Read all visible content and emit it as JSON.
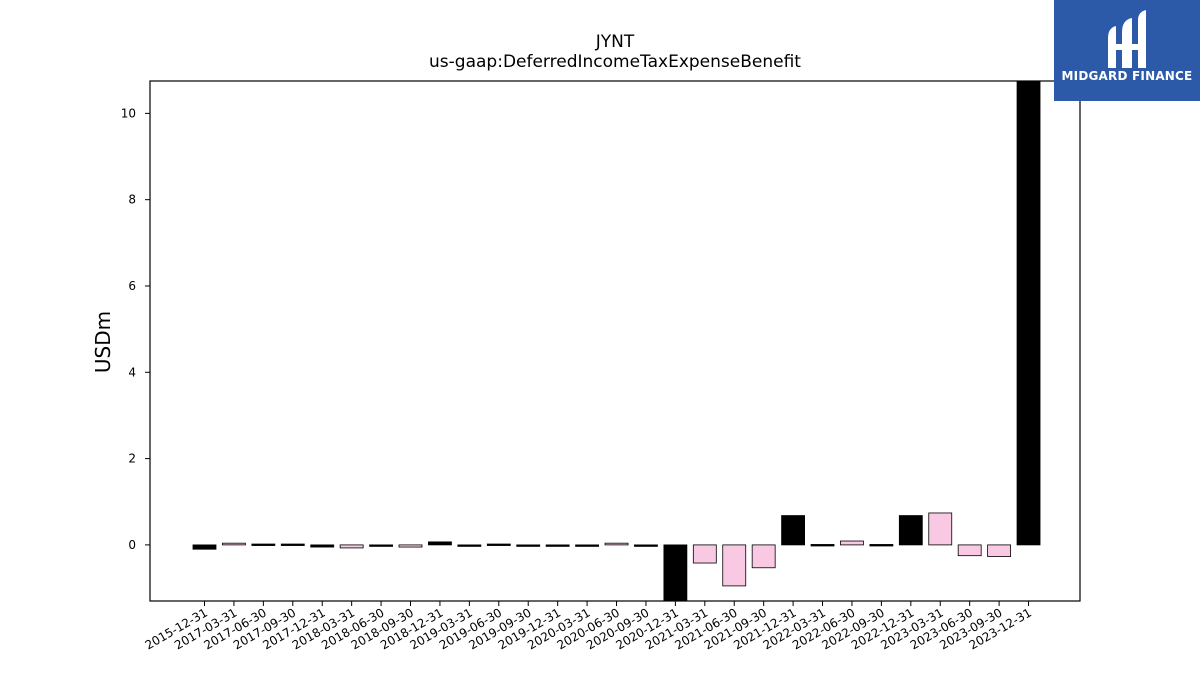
{
  "chart_data": {
    "type": "bar",
    "title": "JYNT",
    "subtitle": "us-gaap:DeferredIncomeTaxExpenseBenefit",
    "xlabel": "",
    "ylabel": "USDm",
    "ylim": [
      -1.3,
      10.75
    ],
    "yticks": [
      0,
      2,
      4,
      6,
      8,
      10
    ],
    "grid": false,
    "categories": [
      "2015-12-31",
      "2017-03-31",
      "2017-06-30",
      "2017-09-30",
      "2017-12-31",
      "2018-03-31",
      "2018-06-30",
      "2018-09-30",
      "2018-12-31",
      "2019-03-31",
      "2019-06-30",
      "2019-09-30",
      "2019-12-31",
      "2020-03-31",
      "2020-06-30",
      "2020-09-30",
      "2020-12-31",
      "2021-03-31",
      "2021-06-30",
      "2021-09-30",
      "2021-12-31",
      "2022-03-31",
      "2022-06-30",
      "2022-09-30",
      "2022-12-31",
      "2023-03-31",
      "2023-06-30",
      "2023-09-30",
      "2023-12-31"
    ],
    "values": [
      -0.1,
      0.04,
      0.02,
      0.02,
      -0.05,
      -0.07,
      -0.01,
      -0.05,
      0.07,
      -0.03,
      0.02,
      -0.01,
      -0.01,
      -0.03,
      0.04,
      -0.01,
      -1.3,
      -0.42,
      -0.95,
      -0.53,
      0.68,
      0.01,
      0.09,
      0.01,
      0.68,
      0.74,
      -0.25,
      -0.27,
      10.75
    ],
    "colors": {
      "positive_annual": "#000000",
      "other": "#f9c9e3",
      "edge": "#000000"
    },
    "bar_fill": [
      "dark",
      "light",
      "dark",
      "dark",
      "dark",
      "light",
      "dark",
      "light",
      "dark",
      "dark",
      "dark",
      "dark",
      "dark",
      "dark",
      "light",
      "dark",
      "dark",
      "light",
      "light",
      "light",
      "dark",
      "dark",
      "light",
      "dark",
      "dark",
      "light",
      "light",
      "light",
      "dark"
    ]
  },
  "logo": {
    "text": "MIDGARD FINANCE",
    "bg": "#2c5aa8"
  }
}
